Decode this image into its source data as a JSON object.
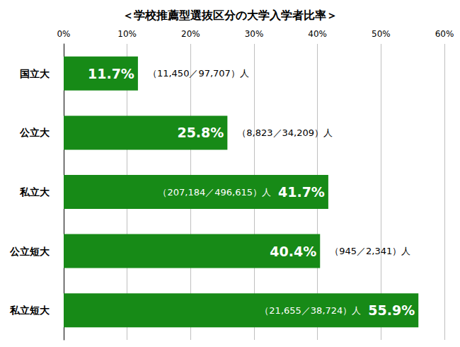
{
  "chart_data": {
    "type": "bar",
    "orientation": "horizontal",
    "title": "＜学校推薦型選抜区分の大学入学者比率＞",
    "categories": [
      "国立大",
      "公立大",
      "私立大",
      "公立短大",
      "私立短大"
    ],
    "values": [
      11.7,
      25.8,
      41.7,
      40.4,
      55.9
    ],
    "value_labels": [
      "11.7%",
      "25.8%",
      "41.7%",
      "40.4%",
      "55.9%"
    ],
    "annotations": [
      "（11,450／97,707）人",
      "（8,823／34,209）人",
      "（207,184／496,615）人",
      "（945／2,341）人",
      "（21,655／38,724）人"
    ],
    "color": "#178a17",
    "data_labels": true,
    "xlim": [
      0,
      60
    ],
    "xticks": [
      {
        "value": 0,
        "label": "0%"
      },
      {
        "value": 10,
        "label": "10%"
      },
      {
        "value": 20,
        "label": "20%"
      },
      {
        "value": 30,
        "label": "30%"
      },
      {
        "value": 40,
        "label": "40%"
      },
      {
        "value": 50,
        "label": "50%"
      },
      {
        "value": 60,
        "label": "60%"
      }
    ],
    "grid": true
  }
}
